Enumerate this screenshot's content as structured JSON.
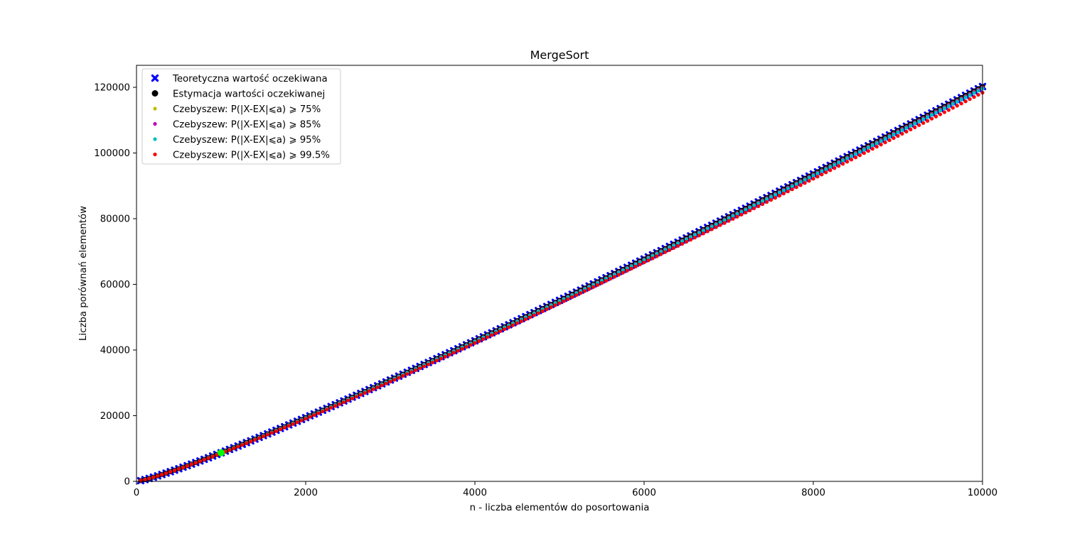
{
  "chart_data": {
    "type": "scatter",
    "title": "MergeSort",
    "xlabel": "n - liczba elementów do posortowania",
    "ylabel": "Liczba porównań elementów",
    "xlim": [
      0,
      10000
    ],
    "ylim": [
      0,
      126700
    ],
    "xticks": [
      0,
      2000,
      4000,
      6000,
      8000,
      10000
    ],
    "yticks": [
      0,
      20000,
      40000,
      60000,
      80000,
      100000,
      120000
    ],
    "grid": false,
    "legend_position": "upper-left",
    "x_range": {
      "start": 0,
      "stop": 10000,
      "step": 50
    },
    "series": [
      {
        "name": "Teoretyczna wartość oczekiwana",
        "marker": "x",
        "color": "#0000ff",
        "formula": "n*log2(n) - 1.2645*n"
      },
      {
        "name": "Estymacja wartości oczekiwanej",
        "marker": "o",
        "color": "#000000",
        "formula": "n*log2(n) - 1.2645*n"
      },
      {
        "name": "Czebyszew: P(|X-EX|⩽a) ⩾ 75%",
        "marker": "dot",
        "color": "#bfbf00",
        "formula": "n*log2(n) - 1.2645*n - 0.0018*n*log2(n)"
      },
      {
        "name": "Czebyszew: P(|X-EX|⩽a) ⩾ 85%",
        "marker": "dot",
        "color": "#bf00bf",
        "formula": "n*log2(n) - 1.2645*n - 0.0025*n*log2(n)"
      },
      {
        "name": "Czebyszew: P(|X-EX|⩽a) ⩾ 95%",
        "marker": "dot",
        "color": "#00bfbf",
        "formula": "n*log2(n) - 1.2645*n - 0.0045*n*log2(n)"
      },
      {
        "name": "Czebyszew: P(|X-EX|⩽a) ⩾ 99.5%",
        "marker": "dot",
        "color": "#ff0000",
        "formula": "n*log2(n) - 1.2645*n - 0.014*n*log2(n)"
      }
    ],
    "annotations": [
      {
        "x": 1000,
        "y": 8700,
        "color": "#00ff00",
        "marker": "o"
      }
    ]
  }
}
